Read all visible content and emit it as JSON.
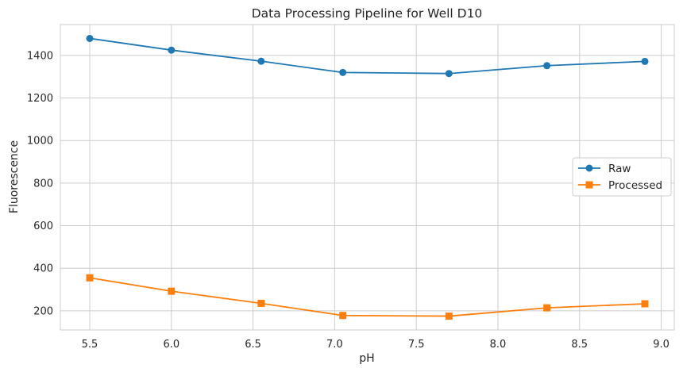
{
  "chart_data": {
    "type": "line",
    "title": "Data Processing Pipeline for Well D10",
    "xlabel": "pH",
    "ylabel": "Fluorescence",
    "xlim": [
      5.32,
      9.08
    ],
    "ylim": [
      110,
      1545
    ],
    "x_ticks": [
      5.5,
      6.0,
      6.5,
      7.0,
      7.5,
      8.0,
      8.5,
      9.0
    ],
    "y_ticks": [
      200,
      400,
      600,
      800,
      1000,
      1200,
      1400
    ],
    "grid": true,
    "legend_position": "center-right",
    "x": [
      5.5,
      6.0,
      6.55,
      7.05,
      7.7,
      8.3,
      8.9
    ],
    "series": [
      {
        "name": "Raw",
        "values": [
          1480,
          1425,
          1373,
          1320,
          1315,
          1352,
          1372
        ],
        "color": "#1f77b4",
        "marker": "circle"
      },
      {
        "name": "Processed",
        "values": [
          355,
          292,
          235,
          178,
          175,
          214,
          233
        ],
        "color": "#ff7f0e",
        "marker": "square"
      }
    ]
  }
}
